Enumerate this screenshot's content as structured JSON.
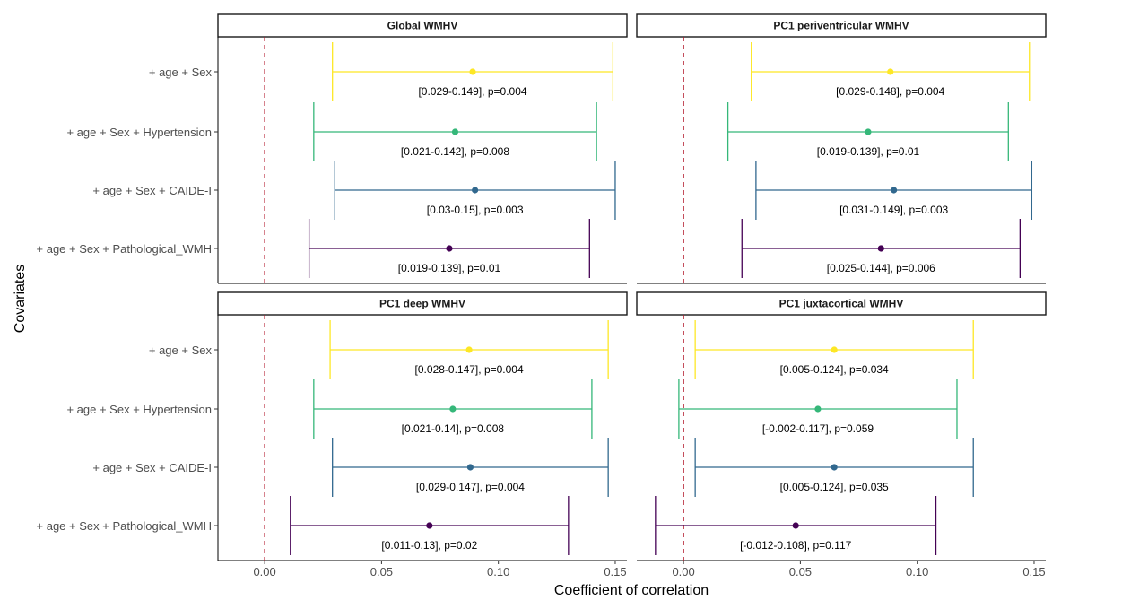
{
  "chart_data": {
    "type": "forest",
    "xlabel": "Coefficient of correlation",
    "ylabel": "Covariates",
    "xlim": [
      -0.02,
      0.155
    ],
    "xticks": [
      0.0,
      0.05,
      0.1,
      0.15
    ],
    "xtick_labels": [
      "0.00",
      "0.05",
      "0.10",
      "0.15"
    ],
    "reference_line": {
      "x": 0,
      "style": "dashed",
      "color": "#b2182b"
    },
    "covariates": [
      "+ age + Sex",
      "+ age + Sex + Hypertension",
      "+ age + Sex + CAIDE-I",
      "+ age + Sex + Pathological_WMH"
    ],
    "colors": [
      "#fde725",
      "#35b779",
      "#31688e",
      "#440154"
    ],
    "panels": [
      {
        "title": "Global WMHV",
        "rows": [
          {
            "estimate": 0.089,
            "lower": 0.029,
            "upper": 0.149,
            "label": "[0.029-0.149], p=0.004"
          },
          {
            "estimate": 0.0815,
            "lower": 0.021,
            "upper": 0.142,
            "label": "[0.021-0.142], p=0.008"
          },
          {
            "estimate": 0.09,
            "lower": 0.03,
            "upper": 0.15,
            "label": "[0.03-0.15], p=0.003"
          },
          {
            "estimate": 0.079,
            "lower": 0.019,
            "upper": 0.139,
            "label": "[0.019-0.139], p=0.01"
          }
        ]
      },
      {
        "title": "PC1 periventricular WMHV",
        "rows": [
          {
            "estimate": 0.0885,
            "lower": 0.029,
            "upper": 0.148,
            "label": "[0.029-0.148], p=0.004"
          },
          {
            "estimate": 0.079,
            "lower": 0.019,
            "upper": 0.139,
            "label": "[0.019-0.139], p=0.01"
          },
          {
            "estimate": 0.09,
            "lower": 0.031,
            "upper": 0.149,
            "label": "[0.031-0.149], p=0.003"
          },
          {
            "estimate": 0.0845,
            "lower": 0.025,
            "upper": 0.144,
            "label": "[0.025-0.144], p=0.006"
          }
        ]
      },
      {
        "title": "PC1 deep WMHV",
        "rows": [
          {
            "estimate": 0.0875,
            "lower": 0.028,
            "upper": 0.147,
            "label": "[0.028-0.147], p=0.004"
          },
          {
            "estimate": 0.0805,
            "lower": 0.021,
            "upper": 0.14,
            "label": "[0.021-0.14], p=0.008"
          },
          {
            "estimate": 0.088,
            "lower": 0.029,
            "upper": 0.147,
            "label": "[0.029-0.147], p=0.004"
          },
          {
            "estimate": 0.0705,
            "lower": 0.011,
            "upper": 0.13,
            "label": "[0.011-0.13], p=0.02"
          }
        ]
      },
      {
        "title": "PC1 juxtacortical WMHV",
        "rows": [
          {
            "estimate": 0.0645,
            "lower": 0.005,
            "upper": 0.124,
            "label": "[0.005-0.124], p=0.034"
          },
          {
            "estimate": 0.0575,
            "lower": -0.002,
            "upper": 0.117,
            "label": "[-0.002-0.117], p=0.059"
          },
          {
            "estimate": 0.0645,
            "lower": 0.005,
            "upper": 0.124,
            "label": "[0.005-0.124], p=0.035"
          },
          {
            "estimate": 0.048,
            "lower": -0.012,
            "upper": 0.108,
            "label": "[-0.012-0.108], p=0.117"
          }
        ]
      }
    ]
  }
}
